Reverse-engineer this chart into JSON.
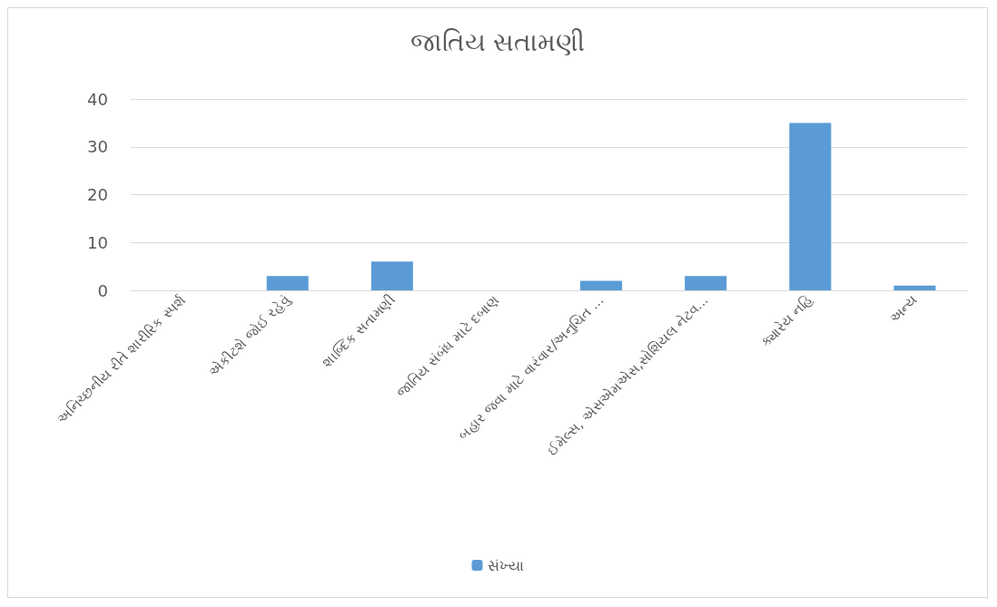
{
  "chart_data": {
    "type": "bar",
    "title": "જાતિય સતામણી",
    "categories": [
      "અનિચ્છનીય રીતે શારીરિક સ્પર્શ",
      "એકીટશે જોઈ રહેવું",
      "શાબ્દિક સતામણી",
      "જાતિય સંબંધ માટે દબાણ",
      "બહાર જવા માટે વારંવાર/અનુચિત ...",
      "ઈમેલ્સ, એસએમએસ,સોશિયલ નેટવ...",
      "ક્યારેય નહિ",
      "અન્ય"
    ],
    "series": [
      {
        "name": "સંખ્યા",
        "color": "#5b9bd5",
        "values": [
          0,
          3,
          6,
          0,
          2,
          3,
          35,
          1
        ]
      }
    ],
    "ylim": [
      0,
      40
    ],
    "yticks": [
      0,
      10,
      20,
      30,
      40
    ],
    "grid": "y",
    "legend": "bottom"
  }
}
